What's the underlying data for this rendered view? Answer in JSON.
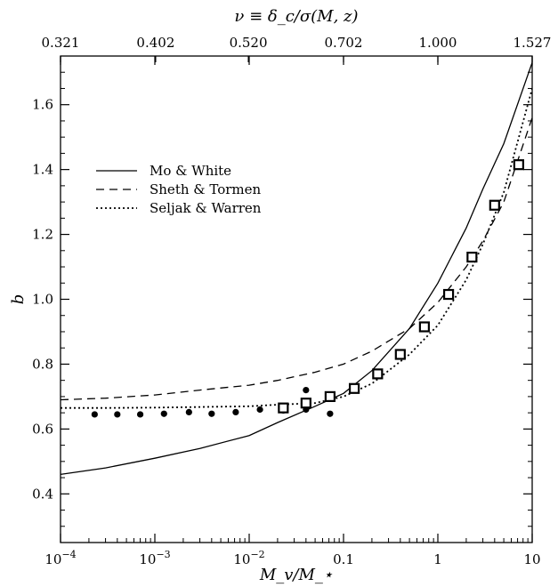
{
  "chart_data": {
    "type": "line",
    "xlabel": "M_v/M_⋆",
    "ylabel": "b",
    "top_xlabel": "ν ≡ δ_c/σ(M, z)",
    "xscale": "log",
    "xlim": [
      0.0001,
      10
    ],
    "ylim": [
      0.25,
      1.75
    ],
    "x_ticks": [
      {
        "value": 0.0001,
        "base": "10",
        "exp": "−4",
        "label": ""
      },
      {
        "value": 0.001,
        "base": "10",
        "exp": "−3",
        "label": ""
      },
      {
        "value": 0.01,
        "base": "10",
        "exp": "−2",
        "label": ""
      },
      {
        "value": 0.1,
        "base": "",
        "exp": "",
        "label": "0.1"
      },
      {
        "value": 1,
        "base": "",
        "exp": "",
        "label": "1"
      },
      {
        "value": 10,
        "base": "",
        "exp": "",
        "label": "10"
      }
    ],
    "y_ticks": [
      "0.4",
      "0.6",
      "0.8",
      "1.0",
      "1.2",
      "1.4",
      "1.6"
    ],
    "top_ticks": [
      {
        "x": 0.0001,
        "label": "0.321"
      },
      {
        "x": 0.00102,
        "label": "0.402"
      },
      {
        "x": 0.0098,
        "label": "0.520"
      },
      {
        "x": 0.1,
        "label": "0.702"
      },
      {
        "x": 1.0,
        "label": "1.000"
      },
      {
        "x": 10,
        "label": "1.527"
      }
    ],
    "legend": {
      "placement": "upper-left",
      "entries": [
        {
          "label": "Mo & White",
          "style": "solid"
        },
        {
          "label": "Sheth & Tormen",
          "style": "dashed"
        },
        {
          "label": "Seljak & Warren",
          "style": "dotted"
        }
      ]
    },
    "series": [
      {
        "name": "Mo & White",
        "style": "solid",
        "x": [
          0.0001,
          0.0003,
          0.001,
          0.003,
          0.01,
          0.02,
          0.05,
          0.1,
          0.2,
          0.5,
          1,
          2,
          3,
          5,
          10
        ],
        "y": [
          0.46,
          0.48,
          0.51,
          0.54,
          0.58,
          0.62,
          0.67,
          0.71,
          0.78,
          0.91,
          1.05,
          1.22,
          1.34,
          1.48,
          1.73
        ]
      },
      {
        "name": "Sheth & Tormen",
        "style": "dashed",
        "x": [
          0.0001,
          0.0003,
          0.001,
          0.003,
          0.01,
          0.02,
          0.05,
          0.1,
          0.2,
          0.5,
          1,
          2,
          3,
          5,
          10
        ],
        "y": [
          0.69,
          0.695,
          0.705,
          0.72,
          0.735,
          0.75,
          0.775,
          0.8,
          0.84,
          0.91,
          0.99,
          1.1,
          1.18,
          1.3,
          1.56
        ]
      },
      {
        "name": "Seljak & Warren",
        "style": "dotted",
        "x": [
          0.0001,
          0.0003,
          0.001,
          0.003,
          0.01,
          0.02,
          0.05,
          0.1,
          0.2,
          0.5,
          1,
          2,
          3,
          5,
          10
        ],
        "y": [
          0.665,
          0.665,
          0.666,
          0.668,
          0.67,
          0.675,
          0.68,
          0.7,
          0.74,
          0.83,
          0.92,
          1.06,
          1.17,
          1.33,
          1.65
        ]
      },
      {
        "name": "",
        "style": "filled-circles",
        "x": [
          0.00023,
          0.0004,
          0.0007,
          0.00125,
          0.0023,
          0.004,
          0.0072,
          0.013,
          0.023,
          0.04,
          0.04,
          0.072
        ],
        "y": [
          0.645,
          0.645,
          0.645,
          0.647,
          0.652,
          0.647,
          0.652,
          0.66,
          0.657,
          0.66,
          0.72,
          0.647
        ]
      },
      {
        "name": "",
        "style": "open-squares",
        "x": [
          0.023,
          0.04,
          0.072,
          0.13,
          0.23,
          0.4,
          0.72,
          1.3,
          2.3,
          4.0,
          7.2
        ],
        "y": [
          0.665,
          0.68,
          0.7,
          0.725,
          0.77,
          0.83,
          0.915,
          1.015,
          1.13,
          1.29,
          1.415
        ]
      }
    ]
  }
}
